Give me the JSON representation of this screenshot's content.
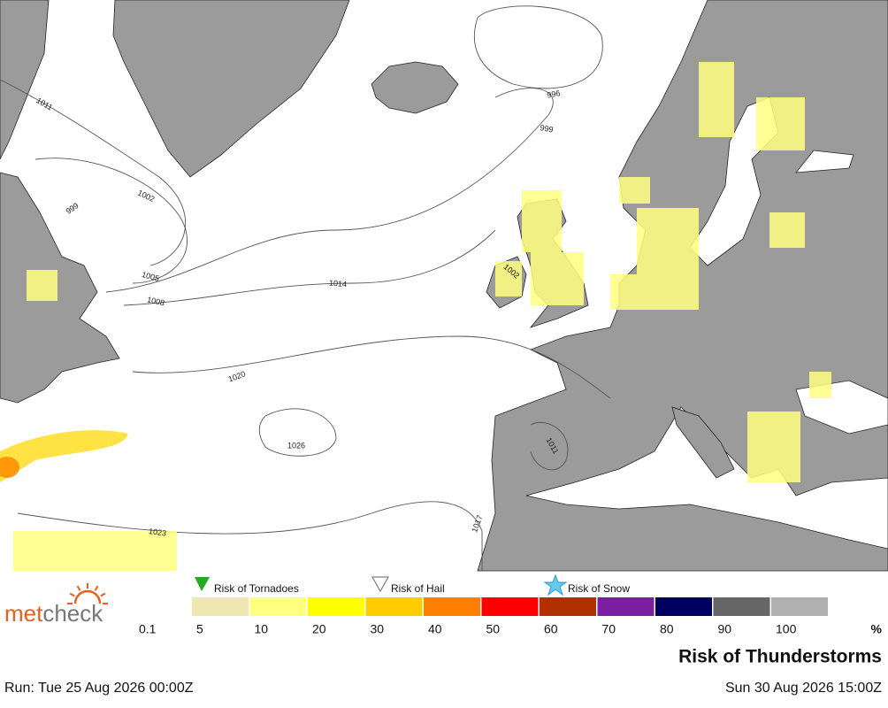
{
  "logo": [
    "met",
    "check"
  ],
  "isobar_labels": [
    "1011",
    "999",
    "1002",
    "1005",
    "1008",
    "1014",
    "1020",
    "1026",
    "1023",
    "1017",
    "1011",
    "1002",
    "996",
    "999"
  ],
  "legend_icons": [
    "Risk of Tornadoes",
    "Risk of Hail",
    "Risk of Snow"
  ],
  "scale": {
    "labels": [
      "0.1",
      "5",
      "10",
      "20",
      "30",
      "40",
      "50",
      "60",
      "70",
      "80",
      "90",
      "100"
    ],
    "colors": [
      "#eee8b0",
      "#ffff80",
      "#ffff00",
      "#ffcc00",
      "#ff8000",
      "#ff0000",
      "#b03000",
      "#7b1fa2",
      "#000060",
      "#666666",
      "#b0b0b0"
    ],
    "unit": "%"
  },
  "title": "Risk of Thunderstorms",
  "run": "Run: Tue 25 Aug 2026 00:00Z",
  "valid": "Sun 30 Aug 2026 15:00Z"
}
